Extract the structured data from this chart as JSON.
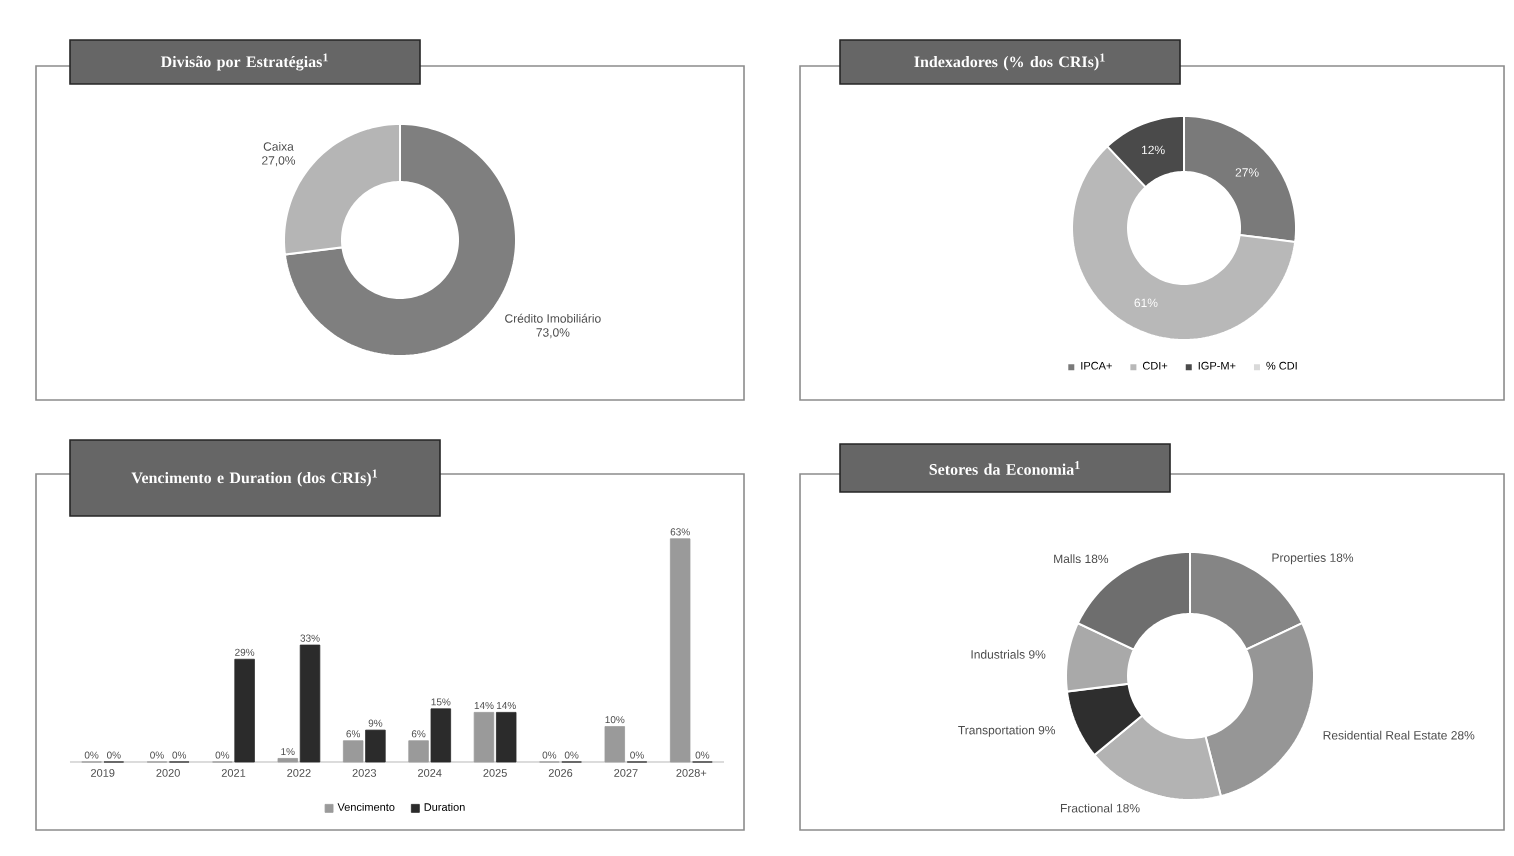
{
  "chart_data": [
    {
      "type": "donut",
      "title": "Divisão por Estratégias$^{1}$",
      "categories": [
        "Crédito Imobiliário",
        "Caixa"
      ],
      "values": [
        73,
        27
      ],
      "colors": [
        "#7f7f7f",
        "#b5b5b5"
      ],
      "value_labels": [
        "73,0%",
        "27,0%"
      ]
    },
    {
      "type": "donut",
      "title": "Indexadores (% dos CRIs)$^{1}$",
      "categories": [
        "IPCA+",
        "CDI+",
        "IGP-M+",
        "% CDI"
      ],
      "values": [
        27,
        61,
        12,
        0
      ],
      "colors": [
        "#7a7a7a",
        "#b8b8b8",
        "#4a4a4a",
        "#d9d9d9"
      ],
      "value_labels": [
        "27%",
        "61%",
        "12%",
        null
      ],
      "legend": "bottom"
    },
    {
      "type": "bar",
      "title": "Vencimento e Duration (dos CRIs)$^{1}$",
      "categories": [
        "2019",
        "2020",
        "2021",
        "2022",
        "2023",
        "2024",
        "2025",
        "2026",
        "2027",
        "2028+"
      ],
      "series": [
        {
          "name": "Vencimento",
          "color": "#9a9a9a",
          "values": [
            0,
            0,
            0,
            1,
            6,
            6,
            14,
            0,
            10,
            63
          ],
          "value_labels": [
            "0%",
            "0%",
            "0%",
            "1%",
            "6%",
            "6%",
            "14%",
            "0%",
            "10%",
            "63%"
          ]
        },
        {
          "name": "Duration",
          "color": "#2b2b2b",
          "values": [
            0,
            0,
            29,
            33,
            9,
            15,
            14,
            0,
            0,
            0
          ],
          "value_labels": [
            "0%",
            "0%",
            "29%",
            "33%",
            "9%",
            "15%",
            "14%",
            "0%",
            "0%",
            "0%"
          ]
        }
      ],
      "legend": "bottom"
    },
    {
      "type": "donut",
      "title": "Setores da Economia$^{1}$",
      "categories": [
        "Properties",
        "Residential Real Estate",
        "Fractional",
        "Transportation",
        "Industrials",
        "Malls"
      ],
      "values": [
        18,
        28,
        18,
        9,
        9,
        18
      ],
      "colors": [
        "#858585",
        "#969696",
        "#b3b3b3",
        "#2e2e2e",
        "#a9a9a9",
        "#6e6e6e"
      ],
      "value_labels": [
        "18%",
        "28%",
        "18%",
        "9%",
        "9%",
        "18%"
      ]
    }
  ]
}
